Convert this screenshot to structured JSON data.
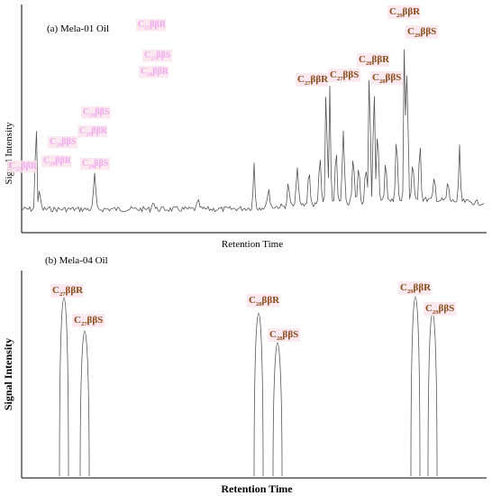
{
  "chart_data": [
    {
      "type": "line",
      "panel_label": "(a) Mela-01 Oil",
      "xlabel": "Retention Time",
      "ylabel": "Signal Intensity",
      "grid": false,
      "labeled_peaks": [
        {
          "label": "C27ββR",
          "base": "C",
          "sub": "27",
          "suffix": "ββR"
        },
        {
          "label": "C27ββS",
          "base": "C",
          "sub": "27",
          "suffix": "ββS"
        },
        {
          "label": "C28ββR",
          "base": "C",
          "sub": "28",
          "suffix": "ββR"
        },
        {
          "label": "C28ββS",
          "base": "C",
          "sub": "28",
          "suffix": "ββS"
        },
        {
          "label": "C29ββR",
          "base": "C",
          "sub": "29",
          "suffix": "ββR"
        },
        {
          "label": "C29ββS",
          "base": "C",
          "sub": "29",
          "suffix": "ββS"
        }
      ]
    },
    {
      "type": "line",
      "panel_label": "(b) Mela-04 Oil",
      "xlabel": "Retention Time",
      "ylabel": "Signal Intensity",
      "grid": false,
      "labeled_peaks": [
        {
          "label": "C27ββR",
          "base": "C",
          "sub": "27",
          "suffix": "ββR"
        },
        {
          "label": "C27ββS",
          "base": "C",
          "sub": "27",
          "suffix": "ββS"
        },
        {
          "label": "C28ββR",
          "base": "C",
          "sub": "28",
          "suffix": "ββR"
        },
        {
          "label": "C28ββS",
          "base": "C",
          "sub": "28",
          "suffix": "ββS"
        },
        {
          "label": "C29ββR",
          "base": "C",
          "sub": "29",
          "suffix": "ββR"
        },
        {
          "label": "C29ββS",
          "base": "C",
          "sub": "29",
          "suffix": "ββS"
        }
      ]
    }
  ]
}
